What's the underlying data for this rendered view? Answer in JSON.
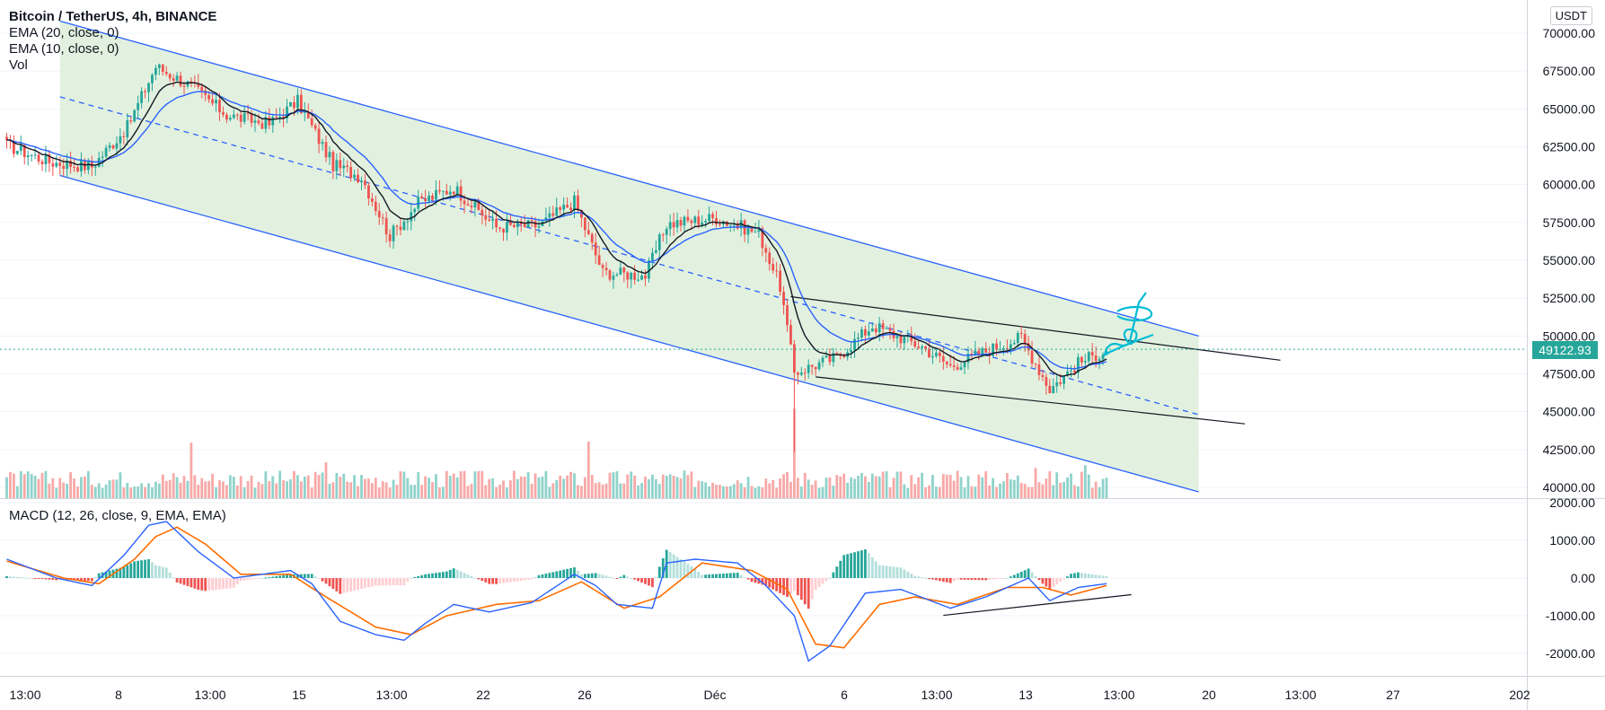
{
  "legend": {
    "title": "Bitcoin / TetherUS, 4h, BINANCE",
    "ema20": "EMA (20, close, 0)",
    "ema10": "EMA (10, close, 0)",
    "vol": "Vol",
    "macd": "MACD (12, 26, close, 9, EMA, EMA)"
  },
  "currency": "USDT",
  "last_price": "49122.93",
  "colors": {
    "up": "#26a69a",
    "down": "#ef5350",
    "up_volume": "#8fd3cb",
    "down_volume": "#f7a9a7",
    "channel_fill": "#dff0dc",
    "channel_line": "#2962ff",
    "ema10": "#131722",
    "ema20": "#2962ff",
    "macd_line": "#2962ff",
    "signal_line": "#ff6d00",
    "annotation": "#00bcd4"
  },
  "chart_data": [
    {
      "type": "candlestick",
      "title": "Bitcoin / TetherUS, 4h, BINANCE",
      "x_tick_labels": [
        "13:00",
        "8",
        "13:00",
        "15",
        "13:00",
        "22",
        "26",
        "Déc",
        "6",
        "13:00",
        "13",
        "13:00",
        "20",
        "13:00",
        "27",
        "202"
      ],
      "y_tick_labels": [
        "70000.00",
        "67500.00",
        "65000.00",
        "62500.00",
        "60000.00",
        "57500.00",
        "55000.00",
        "52500.00",
        "50000.00",
        "47500.00",
        "45000.00",
        "42500.00",
        "40000.00"
      ],
      "ylim": [
        39500,
        71000
      ],
      "last_price": 49122.93,
      "close_path": [
        {
          "bar": 0,
          "close": 62600
        },
        {
          "bar": 12,
          "close": 61500
        },
        {
          "bar": 24,
          "close": 61200
        },
        {
          "bar": 34,
          "close": 63800
        },
        {
          "bar": 42,
          "close": 67800
        },
        {
          "bar": 52,
          "close": 66500
        },
        {
          "bar": 62,
          "close": 64600
        },
        {
          "bar": 74,
          "close": 64000
        },
        {
          "bar": 82,
          "close": 65500
        },
        {
          "bar": 92,
          "close": 61300
        },
        {
          "bar": 100,
          "close": 60500
        },
        {
          "bar": 108,
          "close": 56600
        },
        {
          "bar": 116,
          "close": 58800
        },
        {
          "bar": 126,
          "close": 59800
        },
        {
          "bar": 138,
          "close": 57200
        },
        {
          "bar": 150,
          "close": 57300
        },
        {
          "bar": 160,
          "close": 58900
        },
        {
          "bar": 168,
          "close": 54200
        },
        {
          "bar": 180,
          "close": 54000
        },
        {
          "bar": 186,
          "close": 57400
        },
        {
          "bar": 200,
          "close": 57800
        },
        {
          "bar": 212,
          "close": 56800
        },
        {
          "bar": 218,
          "close": 53300
        },
        {
          "bar": 222,
          "close": 47600
        },
        {
          "bar": 234,
          "close": 48600
        },
        {
          "bar": 244,
          "close": 50700
        },
        {
          "bar": 258,
          "close": 49300
        },
        {
          "bar": 266,
          "close": 48000
        },
        {
          "bar": 278,
          "close": 49200
        },
        {
          "bar": 286,
          "close": 49900
        },
        {
          "bar": 294,
          "close": 46500
        },
        {
          "bar": 302,
          "close": 48200
        },
        {
          "bar": 310,
          "close": 49100
        }
      ],
      "spikes": [
        {
          "bar": 222,
          "low": 42300
        },
        {
          "bar": 223,
          "low": 46800
        }
      ],
      "trendlines": [
        {
          "name": "channel-upper",
          "from": {
            "bar": 15,
            "price": 70800
          },
          "to": {
            "bar": 336,
            "price": 50000
          }
        },
        {
          "name": "channel-middle",
          "from": {
            "bar": 15,
            "price": 65800
          },
          "to": {
            "bar": 336,
            "price": 44800
          }
        },
        {
          "name": "channel-lower",
          "from": {
            "bar": 15,
            "price": 60600
          },
          "to": {
            "bar": 336,
            "price": 39700
          }
        },
        {
          "name": "wedge-upper",
          "from": {
            "bar": 221,
            "price": 52600
          },
          "to": {
            "bar": 359,
            "price": 48400
          }
        },
        {
          "name": "wedge-lower",
          "from": {
            "bar": 228,
            "price": 47300
          },
          "to": {
            "bar": 349,
            "price": 44200
          }
        }
      ]
    },
    {
      "type": "bar",
      "title": "Vol",
      "values_relative": {
        "typical": 0.35,
        "peaks": [
          {
            "bar": 52,
            "value": 1.0
          },
          {
            "bar": 90,
            "value": 0.65
          },
          {
            "bar": 164,
            "value": 1.02
          },
          {
            "bar": 222,
            "value": 1.6
          },
          {
            "bar": 268,
            "value": 0.5
          },
          {
            "bar": 290,
            "value": 0.55
          },
          {
            "bar": 304,
            "value": 0.6
          }
        ]
      }
    },
    {
      "type": "line",
      "title": "MACD (12, 26, close, 9, EMA, EMA)",
      "y_tick_labels": [
        "2000.00",
        "1000.00",
        "0.00",
        "-1000.00",
        "-2000.00"
      ],
      "ylim": [
        -2450,
        2100
      ],
      "series": [
        {
          "points": [
            {
              "bar": 0,
              "value": 500
            },
            {
              "bar": 14,
              "value": 0
            },
            {
              "bar": 24,
              "value": -200
            },
            {
              "bar": 33,
              "value": 600
            },
            {
              "bar": 40,
              "value": 1400
            },
            {
              "bar": 45,
              "value": 1500
            },
            {
              "bar": 54,
              "value": 700
            },
            {
              "bar": 64,
              "value": 0
            },
            {
              "bar": 80,
              "value": 200
            },
            {
              "bar": 86,
              "value": -150
            },
            {
              "bar": 94,
              "value": -1150
            },
            {
              "bar": 104,
              "value": -1500
            },
            {
              "bar": 112,
              "value": -1650
            },
            {
              "bar": 118,
              "value": -1200
            },
            {
              "bar": 126,
              "value": -700
            },
            {
              "bar": 136,
              "value": -900
            },
            {
              "bar": 148,
              "value": -650
            },
            {
              "bar": 160,
              "value": 100
            },
            {
              "bar": 166,
              "value": -200
            },
            {
              "bar": 172,
              "value": -700
            },
            {
              "bar": 182,
              "value": -800
            },
            {
              "bar": 186,
              "value": 400
            },
            {
              "bar": 194,
              "value": 500
            },
            {
              "bar": 206,
              "value": 400
            },
            {
              "bar": 214,
              "value": -200
            },
            {
              "bar": 222,
              "value": -1000
            },
            {
              "bar": 226,
              "value": -2200
            },
            {
              "bar": 232,
              "value": -1800
            },
            {
              "bar": 242,
              "value": -400
            },
            {
              "bar": 252,
              "value": -300
            },
            {
              "bar": 266,
              "value": -800
            },
            {
              "bar": 276,
              "value": -500
            },
            {
              "bar": 288,
              "value": 0
            },
            {
              "bar": 294,
              "value": -600
            },
            {
              "bar": 302,
              "value": -250
            },
            {
              "bar": 310,
              "value": -150
            }
          ]
        },
        {
          "points": [
            {
              "bar": 0,
              "value": 450
            },
            {
              "bar": 16,
              "value": 0
            },
            {
              "bar": 26,
              "value": -150
            },
            {
              "bar": 36,
              "value": 500
            },
            {
              "bar": 42,
              "value": 1100
            },
            {
              "bar": 48,
              "value": 1350
            },
            {
              "bar": 56,
              "value": 900
            },
            {
              "bar": 66,
              "value": 100
            },
            {
              "bar": 80,
              "value": 100
            },
            {
              "bar": 90,
              "value": -500
            },
            {
              "bar": 104,
              "value": -1300
            },
            {
              "bar": 114,
              "value": -1500
            },
            {
              "bar": 124,
              "value": -1000
            },
            {
              "bar": 138,
              "value": -700
            },
            {
              "bar": 150,
              "value": -600
            },
            {
              "bar": 162,
              "value": -100
            },
            {
              "bar": 174,
              "value": -800
            },
            {
              "bar": 184,
              "value": -500
            },
            {
              "bar": 196,
              "value": 400
            },
            {
              "bar": 210,
              "value": 200
            },
            {
              "bar": 220,
              "value": -300
            },
            {
              "bar": 228,
              "value": -1750
            },
            {
              "bar": 236,
              "value": -1850
            },
            {
              "bar": 246,
              "value": -700
            },
            {
              "bar": 256,
              "value": -500
            },
            {
              "bar": 268,
              "value": -700
            },
            {
              "bar": 282,
              "value": -250
            },
            {
              "bar": 292,
              "value": -250
            },
            {
              "bar": 300,
              "value": -450
            },
            {
              "bar": 310,
              "value": -200
            }
          ]
        }
      ],
      "trendline": {
        "from": {
          "bar": 264,
          "value": -990
        },
        "to": {
          "bar": 317,
          "value": -440
        }
      }
    }
  ]
}
